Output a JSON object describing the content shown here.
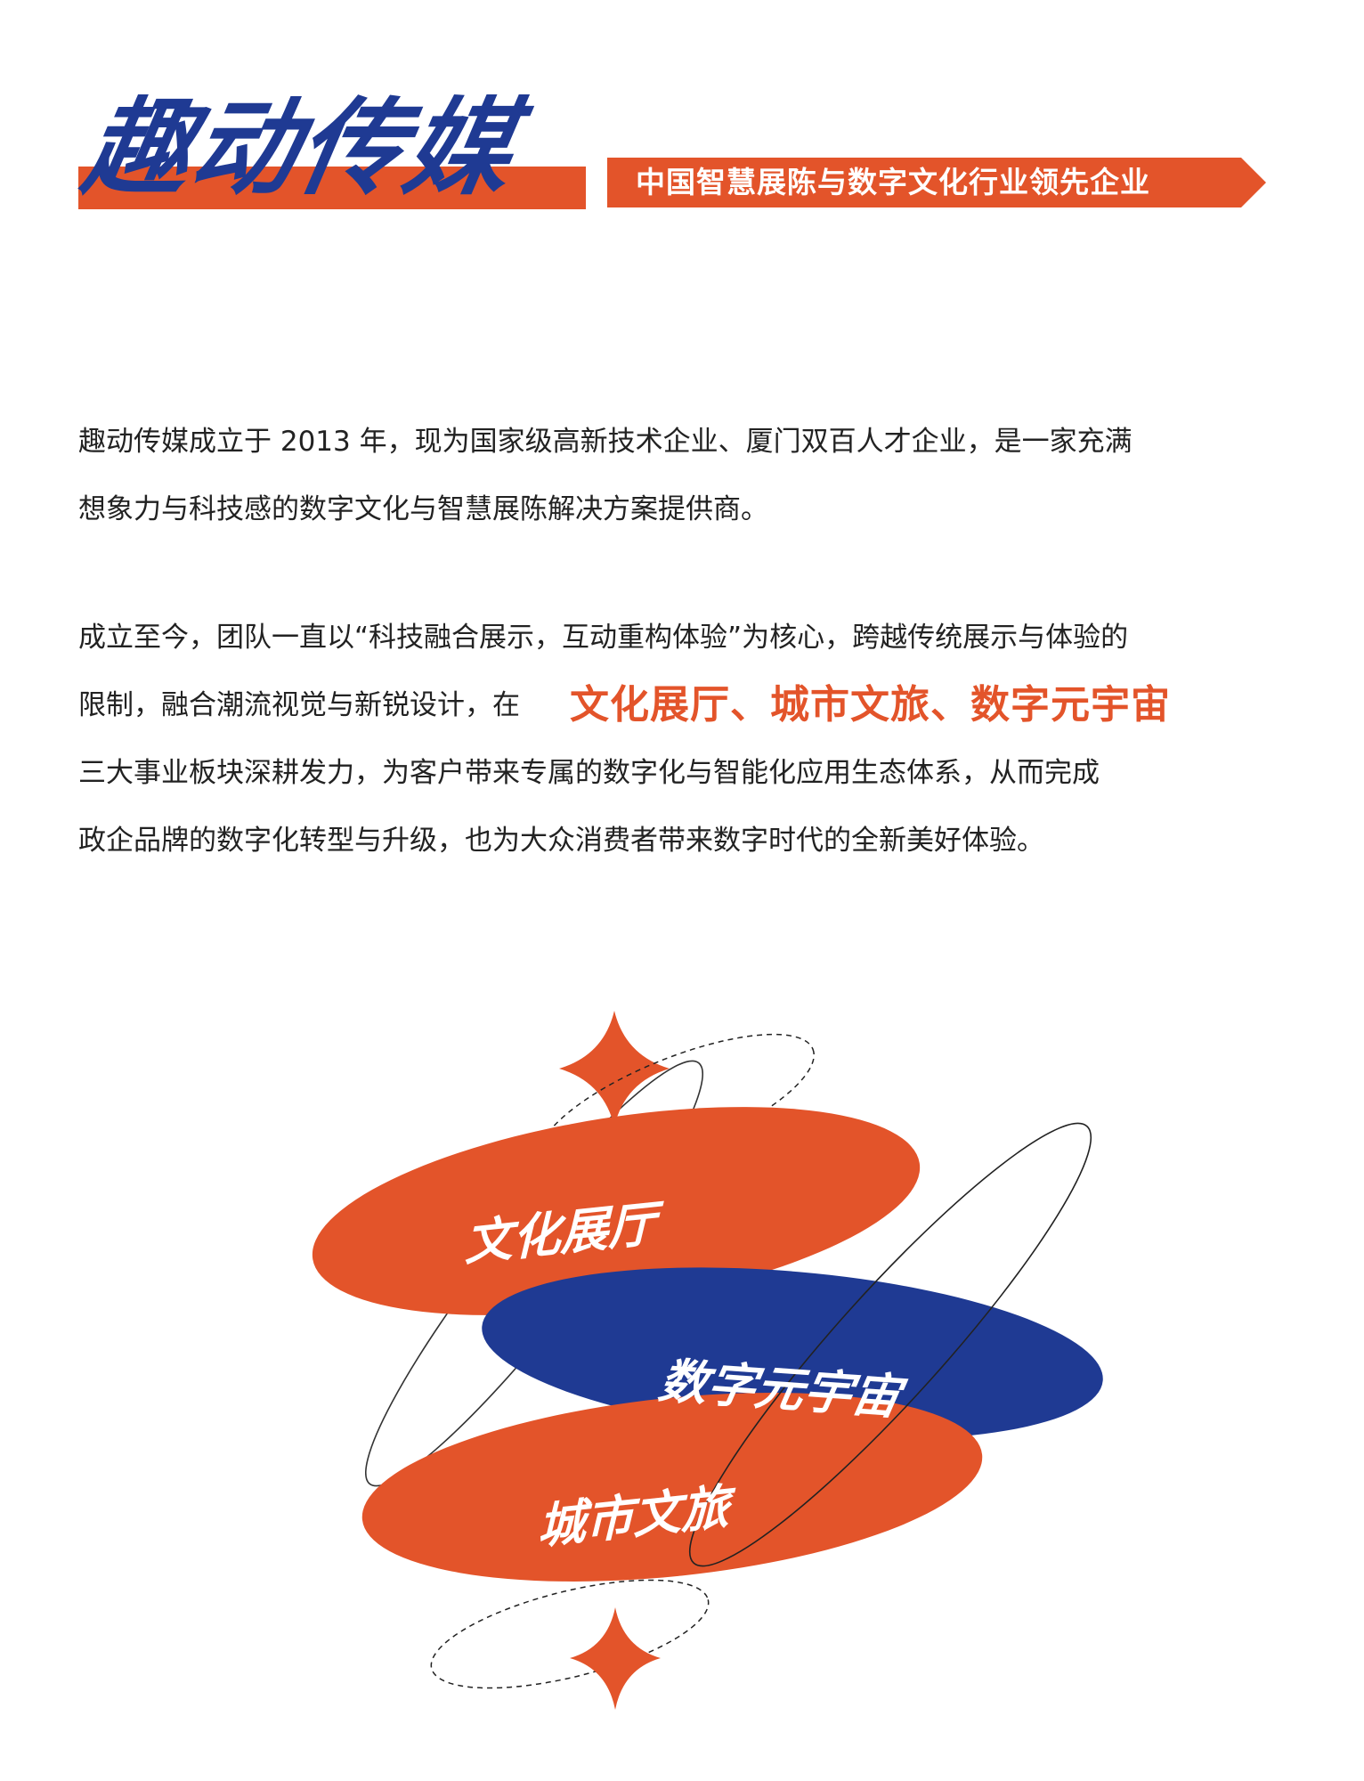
{
  "header": {
    "brand_title": "趣动传媒",
    "slogan": "中国智慧展陈与数字文化行业领先企业"
  },
  "intro": {
    "line_1": "趣动传媒成立于 2013 年，现为国家级高新技术企业、厦门双百人才企业，是一家充满",
    "line_2": "想象力与科技感的数字文化与智慧展陈解决方案提供商。"
  },
  "mission": {
    "line_1": "成立至今，团队一直以“科技融合展示，互动重构体验”为核心，跨越传统展示与体验的",
    "line_2": "限制，融合潮流视觉与新锐设计，在",
    "highlight": "文化展厅、城市文旅、数字元宇宙",
    "line_3": "三大事业板块深耕发力，为客户带来专属的数字化与智能化应用生态体系，从而完成",
    "line_4": "政企品牌的数字化转型与升级，也为大众消费者带来数字时代的全新美好体验。"
  },
  "illustration": {
    "pill_1_label": "文化展厅",
    "pill_2_label": "数字元宇宙",
    "pill_3_label": "城市文旅"
  },
  "colors": {
    "brand_orange": "#e3542a",
    "brand_blue": "#1f3a93",
    "text": "#222222",
    "background": "#ffffff"
  }
}
